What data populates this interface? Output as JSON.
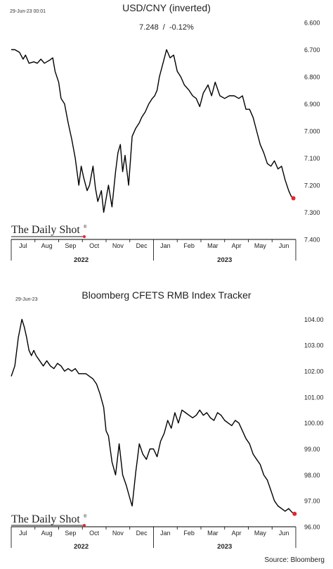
{
  "colors": {
    "line": "#000000",
    "end_marker": "#e8242b",
    "logo_dot": "#e8242b",
    "axis": "#000000",
    "text": "#222222"
  },
  "footer": {
    "source": "Source: Bloomberg"
  },
  "charts": [
    {
      "timestamp": "29-Jun-23 00:01",
      "title": "USD/CNY (inverted)",
      "subtitle": "7.248  /  -0.12%",
      "logo": "The Daily Shot",
      "logo_mark": "®"
    },
    {
      "timestamp": "29-Jun-23",
      "title": "Bloomberg CFETS RMB Index Tracker",
      "subtitle": "",
      "logo": "The Daily Shot",
      "logo_mark": "®"
    }
  ],
  "chart_data": [
    {
      "type": "line",
      "title": "USD/CNY (inverted)",
      "inverted_y": true,
      "ylim": [
        6.6,
        7.4
      ],
      "yticks": [
        "6.600",
        "6.700",
        "6.800",
        "6.900",
        "7.000",
        "7.100",
        "7.200",
        "7.300",
        "7.400"
      ],
      "xlim": [
        0,
        12
      ],
      "month_labels": [
        "Jul",
        "Aug",
        "Sep",
        "Oct",
        "Nov",
        "Dec",
        "Jan",
        "Feb",
        "Mar",
        "Apr",
        "May",
        "Jun"
      ],
      "year_labels": [
        {
          "label": "2022",
          "x": 2.95
        },
        {
          "label": "2023",
          "x": 9.0
        }
      ],
      "series": [
        {
          "x": [
            0.0,
            0.15,
            0.35,
            0.5,
            0.6,
            0.75,
            0.95,
            1.1,
            1.25,
            1.4,
            1.5,
            1.6,
            1.75,
            1.85,
            2.0,
            2.1,
            2.25,
            2.4,
            2.55,
            2.7,
            2.85,
            2.95,
            3.05,
            3.2,
            3.3,
            3.45,
            3.55,
            3.65,
            3.8,
            3.9,
            4.0,
            4.1,
            4.25,
            4.4,
            4.5,
            4.6,
            4.7,
            4.8,
            4.95,
            5.1,
            5.25,
            5.4,
            5.5,
            5.65,
            5.8,
            5.95,
            6.05,
            6.15,
            6.25,
            6.4,
            6.55,
            6.7,
            6.85,
            7.0,
            7.15,
            7.3,
            7.5,
            7.65,
            7.8,
            7.95,
            8.1,
            8.3,
            8.45,
            8.6,
            8.8,
            9.0,
            9.2,
            9.4,
            9.6,
            9.75,
            9.9,
            10.05,
            10.2,
            10.35,
            10.5,
            10.65,
            10.8,
            10.95,
            11.1,
            11.25,
            11.4,
            11.55,
            11.7,
            11.8,
            11.9
          ],
          "y": [
            6.7,
            6.7,
            6.71,
            6.735,
            6.72,
            6.75,
            6.745,
            6.75,
            6.735,
            6.75,
            6.745,
            6.74,
            6.73,
            6.78,
            6.82,
            6.88,
            6.9,
            6.97,
            7.03,
            7.1,
            7.2,
            7.13,
            7.17,
            7.22,
            7.2,
            7.13,
            7.21,
            7.26,
            7.22,
            7.3,
            7.25,
            7.2,
            7.28,
            7.15,
            7.08,
            7.05,
            7.15,
            7.09,
            7.2,
            7.02,
            6.99,
            6.97,
            6.95,
            6.93,
            6.9,
            6.88,
            6.87,
            6.85,
            6.8,
            6.75,
            6.7,
            6.73,
            6.72,
            6.78,
            6.8,
            6.83,
            6.85,
            6.87,
            6.88,
            6.91,
            6.86,
            6.83,
            6.87,
            6.82,
            6.87,
            6.88,
            6.87,
            6.87,
            6.88,
            6.87,
            6.92,
            6.92,
            6.95,
            7.0,
            7.05,
            7.08,
            7.12,
            7.13,
            7.11,
            7.14,
            7.13,
            7.18,
            7.22,
            7.24,
            7.248
          ]
        }
      ]
    },
    {
      "type": "line",
      "title": "Bloomberg CFETS RMB Index Tracker",
      "ylim": [
        96.0,
        104.5
      ],
      "yticks": [
        "96.00",
        "97.00",
        "98.00",
        "99.00",
        "100.00",
        "101.00",
        "102.00",
        "103.00",
        "104.00"
      ],
      "xlim": [
        0,
        12
      ],
      "month_labels": [
        "Jul",
        "Aug",
        "Sep",
        "Oct",
        "Nov",
        "Dec",
        "Jan",
        "Feb",
        "Mar",
        "Apr",
        "May",
        "Jun"
      ],
      "year_labels": [
        {
          "label": "2022",
          "x": 2.95
        },
        {
          "label": "2023",
          "x": 9.0
        }
      ],
      "series": [
        {
          "x": [
            0.0,
            0.15,
            0.3,
            0.45,
            0.55,
            0.65,
            0.75,
            0.85,
            0.95,
            1.05,
            1.2,
            1.35,
            1.5,
            1.65,
            1.8,
            1.95,
            2.1,
            2.25,
            2.4,
            2.55,
            2.7,
            2.85,
            3.0,
            3.15,
            3.3,
            3.45,
            3.6,
            3.75,
            3.9,
            4.0,
            4.1,
            4.25,
            4.4,
            4.55,
            4.7,
            4.85,
            5.0,
            5.1,
            5.25,
            5.4,
            5.55,
            5.7,
            5.85,
            6.0,
            6.15,
            6.3,
            6.45,
            6.6,
            6.75,
            6.9,
            7.05,
            7.2,
            7.35,
            7.5,
            7.65,
            7.8,
            7.95,
            8.1,
            8.25,
            8.4,
            8.55,
            8.7,
            8.85,
            9.0,
            9.15,
            9.3,
            9.45,
            9.6,
            9.75,
            9.9,
            10.05,
            10.2,
            10.35,
            10.5,
            10.65,
            10.8,
            10.95,
            11.1,
            11.25,
            11.4,
            11.55,
            11.7,
            11.85,
            11.95
          ],
          "y": [
            101.8,
            102.2,
            103.3,
            104.0,
            103.7,
            103.3,
            102.8,
            102.6,
            102.8,
            102.6,
            102.4,
            102.2,
            102.4,
            102.2,
            102.1,
            102.3,
            102.2,
            102.0,
            102.1,
            102.0,
            102.1,
            101.9,
            101.9,
            101.9,
            101.8,
            101.7,
            101.5,
            101.1,
            100.6,
            99.7,
            99.5,
            98.5,
            98.0,
            99.2,
            98.0,
            97.6,
            97.1,
            96.8,
            98.1,
            99.2,
            98.8,
            98.6,
            99.0,
            99.0,
            98.7,
            99.3,
            99.6,
            100.1,
            99.8,
            100.4,
            100.0,
            100.5,
            100.4,
            100.3,
            100.2,
            100.3,
            100.5,
            100.3,
            100.4,
            100.2,
            100.1,
            100.4,
            100.3,
            100.1,
            100.0,
            99.9,
            100.1,
            100.0,
            99.7,
            99.4,
            99.2,
            98.8,
            98.6,
            98.4,
            98.0,
            97.8,
            97.4,
            97.0,
            96.8,
            96.7,
            96.6,
            96.7,
            96.55,
            96.5
          ]
        }
      ]
    }
  ]
}
